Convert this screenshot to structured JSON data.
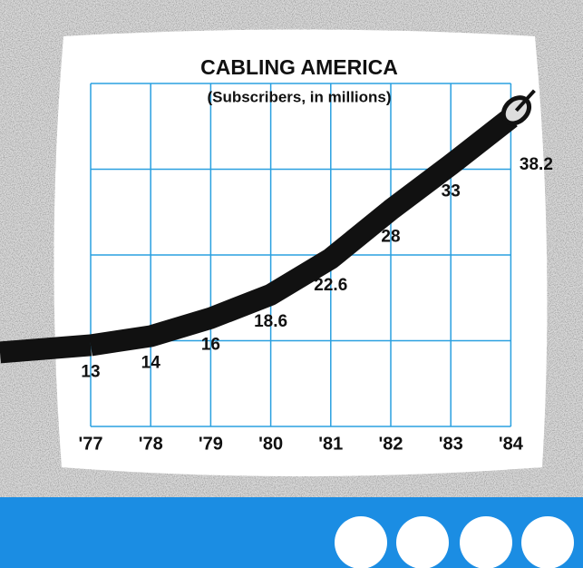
{
  "chart_data": {
    "type": "line",
    "title": "CABLING AMERICA",
    "subtitle": "(Subscribers, in millions)",
    "categories": [
      "'77",
      "'78",
      "'79",
      "'80",
      "'81",
      "'82",
      "'83",
      "'84"
    ],
    "values": [
      13,
      14,
      16,
      18.6,
      22.6,
      28,
      33,
      38.2
    ],
    "color": "#111111",
    "ylim": [
      4,
      42
    ],
    "grid": true
  }
}
